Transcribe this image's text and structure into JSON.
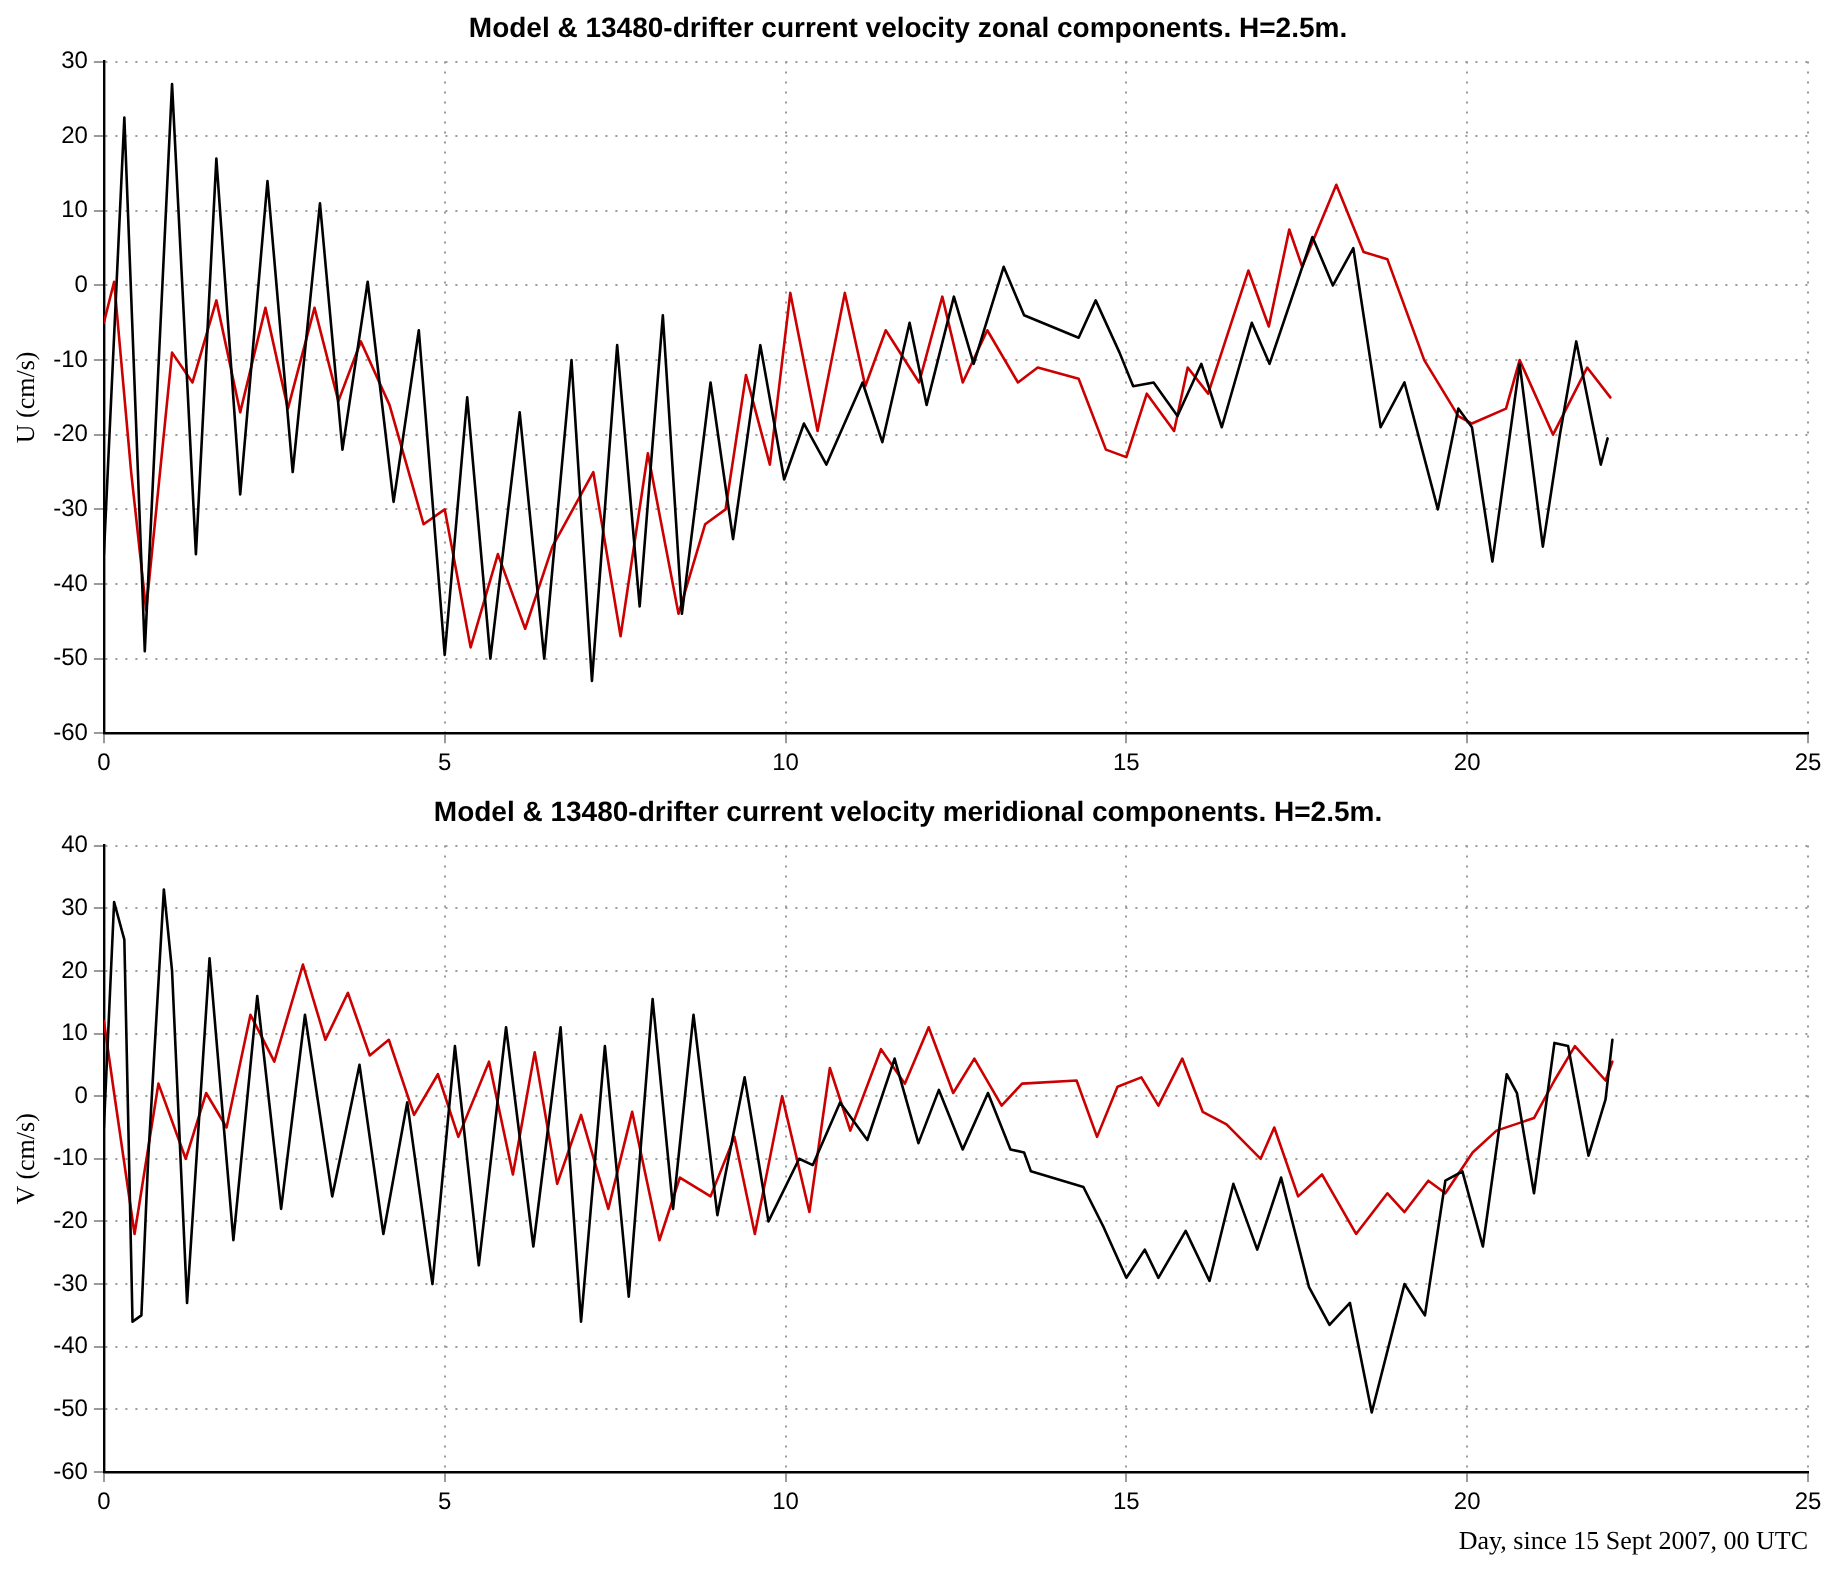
{
  "chart_data": [
    {
      "type": "line",
      "title": "Model & 13480-drifter current velocity zonal components. H=2.5m.",
      "ylabel": "U (cm/s)",
      "xlim": [
        0,
        25
      ],
      "xticks": [
        0,
        5,
        10,
        15,
        20,
        25
      ],
      "ylim": [
        -60,
        30
      ],
      "yticks": [
        -60,
        -50,
        -40,
        -30,
        -20,
        -10,
        0,
        10,
        20,
        30
      ],
      "grid": true,
      "series": [
        {
          "color": "#000000",
          "x": [
            0,
            0.3,
            0.6,
            1.0,
            1.35,
            1.65,
            2.0,
            2.4,
            2.77,
            3.17,
            3.5,
            3.87,
            4.25,
            4.62,
            5.0,
            5.33,
            5.67,
            6.1,
            6.46,
            6.86,
            7.16,
            7.53,
            7.86,
            8.2,
            8.48,
            8.9,
            9.23,
            9.63,
            9.98,
            10.27,
            10.6,
            11.13,
            11.42,
            11.82,
            12.07,
            12.47,
            12.76,
            13.2,
            13.5,
            14.3,
            14.55,
            14.9,
            15.1,
            15.4,
            15.75,
            16.1,
            16.4,
            16.84,
            17.1,
            17.73,
            18.03,
            18.33,
            18.73,
            19.08,
            19.57,
            19.87,
            20.07,
            20.37,
            20.77,
            21.11,
            21.36,
            21.6,
            21.96,
            22.06
          ],
          "values": [
            -36,
            22.5,
            -49,
            27,
            -36,
            17,
            -28,
            14,
            -25,
            11,
            -22,
            0.5,
            -29,
            -6,
            -49.5,
            -15,
            -50,
            -17,
            -50,
            -10,
            -53,
            -8,
            -43,
            -4,
            -44,
            -13,
            -34,
            -8,
            -26,
            -18.5,
            -24,
            -13,
            -21,
            -5,
            -16,
            -1.5,
            -10.5,
            2.5,
            -4,
            -7,
            -2,
            -9,
            -13.5,
            -13,
            -17.5,
            -10.5,
            -19,
            -5,
            -10.5,
            6.5,
            0,
            5,
            -19,
            -13,
            -30,
            -16.5,
            -19,
            -37,
            -10.5,
            -35,
            -20,
            -7.5,
            -24,
            -20.5
          ]
        },
        {
          "color": "#cc0000",
          "x": [
            0,
            0.15,
            0.4,
            0.62,
            1.0,
            1.3,
            1.65,
            2.0,
            2.37,
            2.7,
            3.09,
            3.44,
            3.77,
            4.19,
            4.69,
            5.0,
            5.38,
            5.78,
            6.18,
            6.58,
            7.18,
            7.58,
            7.98,
            8.43,
            8.82,
            9.12,
            9.42,
            9.77,
            10.07,
            10.47,
            10.87,
            11.17,
            11.47,
            11.96,
            12.3,
            12.6,
            12.96,
            13.41,
            13.7,
            14.3,
            14.7,
            15.0,
            15.3,
            15.7,
            15.9,
            16.2,
            16.79,
            17.09,
            17.39,
            17.58,
            18.08,
            18.48,
            18.83,
            19.37,
            19.87,
            20.07,
            20.57,
            20.77,
            21.26,
            21.76,
            22.1
          ],
          "values": [
            -5,
            0.5,
            -25,
            -43.5,
            -9,
            -13,
            -2,
            -17,
            -3,
            -16.5,
            -3,
            -15.5,
            -7.5,
            -16,
            -32,
            -30,
            -48.5,
            -36,
            -46,
            -35,
            -25,
            -47,
            -22.5,
            -44,
            -32,
            -30,
            -12,
            -24,
            -1,
            -19.5,
            -1,
            -13.5,
            -6,
            -13,
            -1.5,
            -13,
            -6,
            -13,
            -11,
            -12.5,
            -22,
            -23,
            -14.5,
            -19.5,
            -11,
            -14.5,
            2,
            -5.5,
            7.5,
            2.5,
            13.5,
            4.5,
            3.5,
            -10,
            -17.5,
            -18.5,
            -16.5,
            -10,
            -20,
            -11,
            -15
          ]
        }
      ]
    },
    {
      "type": "line",
      "title": "Model & 13480-drifter current velocity meridional components. H=2.5m.",
      "xlabel": "Day, since 15 Sept 2007, 00 UTC",
      "ylabel": "V (cm/s)",
      "xlim": [
        0,
        25
      ],
      "xticks": [
        0,
        5,
        10,
        15,
        20,
        25
      ],
      "ylim": [
        -60,
        40
      ],
      "yticks": [
        -60,
        -50,
        -40,
        -30,
        -20,
        -10,
        0,
        10,
        20,
        30,
        40
      ],
      "grid": true,
      "series": [
        {
          "color": "#000000",
          "x": [
            0,
            0.15,
            0.3,
            0.42,
            0.55,
            0.65,
            0.88,
            1.0,
            1.22,
            1.55,
            1.9,
            2.25,
            2.6,
            2.95,
            3.35,
            3.75,
            4.1,
            4.45,
            4.82,
            5.15,
            5.5,
            5.9,
            6.3,
            6.7,
            7.0,
            7.35,
            7.7,
            8.05,
            8.35,
            8.65,
            9.0,
            9.4,
            9.75,
            10.2,
            10.4,
            10.8,
            11.2,
            11.6,
            11.95,
            12.25,
            12.6,
            12.97,
            13.3,
            13.5,
            13.6,
            14.37,
            14.67,
            15.0,
            15.27,
            15.47,
            15.87,
            16.22,
            16.57,
            16.92,
            17.27,
            17.68,
            17.98,
            18.28,
            18.6,
            19.08,
            19.38,
            19.68,
            19.93,
            20.23,
            20.58,
            20.73,
            20.98,
            21.28,
            21.48,
            21.78,
            22.03,
            22.13
          ],
          "values": [
            -5,
            31,
            25,
            -36,
            -35,
            -10,
            33,
            20,
            -33,
            22,
            -23,
            16,
            -18,
            13,
            -16,
            5,
            -22,
            -1,
            -30,
            8,
            -27,
            11,
            -24,
            11,
            -36,
            8,
            -32,
            15.5,
            -18,
            13,
            -19,
            3,
            -20,
            -10,
            -11,
            -1,
            -7,
            6,
            -7.5,
            1,
            -8.5,
            0.5,
            -8.5,
            -9,
            -12,
            -14.5,
            -21,
            -29,
            -24.5,
            -29,
            -21.5,
            -29.5,
            -14,
            -24.5,
            -13,
            -30.5,
            -36.5,
            -33,
            -50.5,
            -30,
            -35,
            -13.5,
            -12,
            -24,
            3.5,
            0.5,
            -15.5,
            8.5,
            8,
            -9.5,
            -0.5,
            9
          ]
        },
        {
          "color": "#cc0000",
          "x": [
            0,
            0.15,
            0.45,
            0.8,
            1.2,
            1.5,
            1.8,
            2.15,
            2.5,
            2.92,
            3.25,
            3.58,
            3.9,
            4.18,
            4.55,
            4.9,
            5.2,
            5.65,
            6.0,
            6.32,
            6.65,
            7.0,
            7.4,
            7.75,
            8.15,
            8.45,
            8.9,
            9.25,
            9.55,
            9.95,
            10.35,
            10.65,
            10.95,
            11.4,
            11.75,
            12.1,
            12.46,
            12.77,
            13.17,
            13.47,
            14.27,
            14.57,
            14.87,
            15.22,
            15.47,
            15.82,
            16.12,
            16.47,
            16.97,
            17.17,
            17.52,
            17.87,
            18.37,
            18.83,
            19.08,
            19.43,
            19.68,
            20.08,
            20.43,
            20.98,
            21.28,
            21.58,
            22.03,
            22.13
          ],
          "values": [
            12,
            0.5,
            -22,
            2,
            -10,
            0.5,
            -5,
            13,
            5.5,
            21,
            9,
            16.5,
            6.5,
            9,
            -3,
            3.5,
            -6.5,
            5.5,
            -12.5,
            7,
            -14,
            -3,
            -18,
            -2.5,
            -23,
            -13,
            -16,
            -6.5,
            -22,
            0,
            -18.5,
            4.5,
            -5.5,
            7.5,
            2,
            11,
            0.5,
            6,
            -1.5,
            2,
            2.5,
            -6.5,
            1.5,
            3,
            -1.5,
            6,
            -2.5,
            -4.5,
            -10,
            -5,
            -16,
            -12.5,
            -22,
            -15.5,
            -18.5,
            -13.5,
            -15.5,
            -9,
            -5.5,
            -3.5,
            2.5,
            8,
            2.5,
            5.5
          ]
        }
      ]
    }
  ]
}
